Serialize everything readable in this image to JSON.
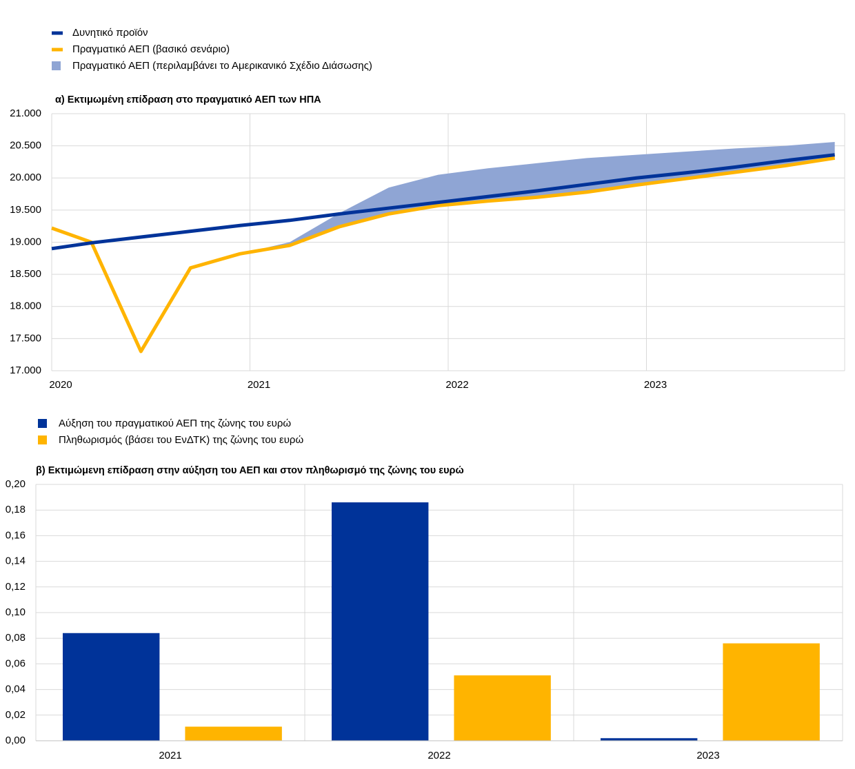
{
  "chart_data": [
    {
      "type": "line",
      "title": "α) Εκτιμωμένη επίδραση στο πραγματικό ΑΕΠ των ΗΠΑ",
      "x": [
        2020,
        2020.2,
        2020.45,
        2020.7,
        2020.95,
        2021.2,
        2021.45,
        2021.7,
        2021.95,
        2022.2,
        2022.45,
        2022.7,
        2022.95,
        2023.2,
        2023.45,
        2023.7,
        2023.95
      ],
      "series": [
        {
          "name": "Δυνητικό προϊόν",
          "color": "#003399",
          "values": [
            18900,
            18990,
            19080,
            19170,
            19260,
            19340,
            19440,
            19530,
            19620,
            19710,
            19800,
            19900,
            20000,
            20080,
            20170,
            20270,
            20360
          ]
        },
        {
          "name": "Πραγματικό ΑΕΠ (βασικό σενάριο)",
          "color": "#ffb400",
          "values": [
            19220,
            19000,
            17300,
            18600,
            18820,
            18950,
            19240,
            19440,
            19570,
            19640,
            19700,
            19780,
            19890,
            19990,
            20090,
            20190,
            20310
          ]
        },
        {
          "name": "Πραγματικό ΑΕΠ (περιλαμβάνει το Αμερικανικό Σχέδιο Διάσωσης)",
          "color": "#8fa5d4",
          "type": "area",
          "values": [
            null,
            null,
            null,
            null,
            18820,
            19000,
            19450,
            19850,
            20050,
            20150,
            20230,
            20310,
            20360,
            20410,
            20460,
            20500,
            20560
          ]
        }
      ],
      "xlim": [
        2020,
        2024
      ],
      "xticks": [
        2020,
        2021,
        2022,
        2023
      ],
      "ylim": [
        17000,
        21000
      ],
      "yticks": [
        {
          "value": 17000,
          "label": "17.000"
        },
        {
          "value": 17500,
          "label": "17.500"
        },
        {
          "value": 18000,
          "label": "18.000"
        },
        {
          "value": 18500,
          "label": "18.500"
        },
        {
          "value": 19000,
          "label": "19.000"
        },
        {
          "value": 19500,
          "label": "19.500"
        },
        {
          "value": 20000,
          "label": "20.000"
        },
        {
          "value": 20500,
          "label": "20.500"
        },
        {
          "value": 21000,
          "label": "21.000"
        }
      ],
      "grid": true
    },
    {
      "type": "bar",
      "title": "β) Εκτιμώμενη επίδραση στην αύξηση του ΑΕΠ και στον πληθωρισμό της ζώνης του ευρώ",
      "categories": [
        "2021",
        "2022",
        "2023"
      ],
      "series": [
        {
          "name": "Αύξηση του πραγματικού ΑΕΠ της ζώνης του ευρώ",
          "color": "#003399",
          "values": [
            0.084,
            0.186,
            0.002
          ]
        },
        {
          "name": "Πληθωρισμός (βάσει του ΕνΔΤΚ) της ζώνης του ευρώ",
          "color": "#ffb400",
          "values": [
            0.011,
            0.051,
            0.076
          ]
        }
      ],
      "ylim": [
        0,
        0.2
      ],
      "yticks": [
        {
          "value": 0,
          "label": "0,00"
        },
        {
          "value": 0.02,
          "label": "0,02"
        },
        {
          "value": 0.04,
          "label": "0,04"
        },
        {
          "value": 0.06,
          "label": "0,06"
        },
        {
          "value": 0.08,
          "label": "0,08"
        },
        {
          "value": 0.1,
          "label": "0,10"
        },
        {
          "value": 0.12,
          "label": "0,12"
        },
        {
          "value": 0.14,
          "label": "0,14"
        },
        {
          "value": 0.16,
          "label": "0,16"
        },
        {
          "value": 0.18,
          "label": "0,18"
        },
        {
          "value": 0.2,
          "label": "0,20"
        }
      ],
      "grid": true
    }
  ]
}
